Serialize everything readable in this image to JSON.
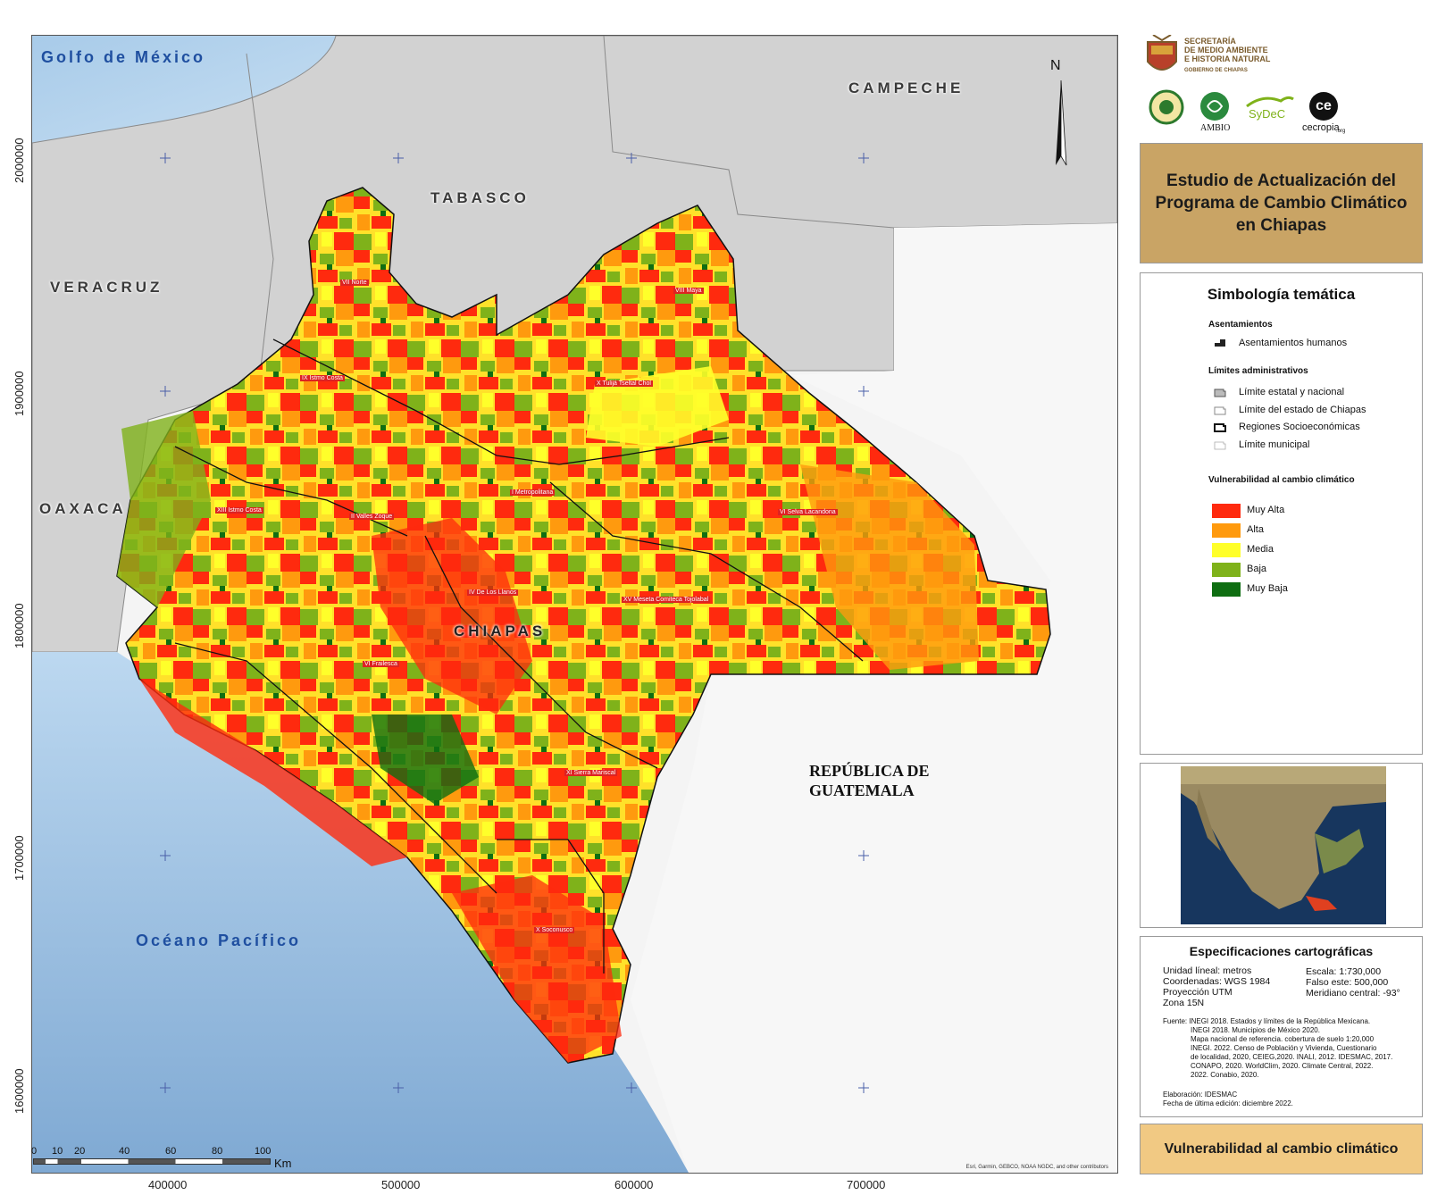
{
  "map": {
    "neighbors": [
      "Golfo de México",
      "CAMPECHE",
      "TABASCO",
      "VERACRUZ",
      "OAXACA",
      "Océano Pacífico"
    ],
    "state_label": "CHIAPAS",
    "guatemala_label": "REPÚBLICA DE\nGUATEMALA",
    "north_arrow": "N",
    "attribution": "Esri, Garmin, GEBCO, NOAA NGDC, and other contributors",
    "regions": [
      "VII Norte",
      "VIII Maya",
      "X Tulijá Tseltal Chol",
      "VI Frailesca",
      "XIII Istmo Costa",
      "I Metropolitana",
      "II Valles Zoque",
      "XV Meseta Comiteca Tojolabal",
      "VI Selva Lacandona",
      "IV De Los Llanos",
      "XI Sierra Mariscal",
      "X Soconusco",
      "IX Istmo Costa"
    ]
  },
  "axes": {
    "x_ticks": [
      "400000",
      "500000",
      "600000",
      "700000"
    ],
    "y_ticks": [
      "2000000",
      "1900000",
      "1800000",
      "1700000",
      "1600000"
    ]
  },
  "scale": {
    "labels": [
      "0",
      "10",
      "20",
      "40",
      "60",
      "80",
      "100"
    ],
    "unit": "Km"
  },
  "logos": {
    "secretaria": "SECRETARÍA",
    "dependencia_1": "DE MEDIO AMBIENTE",
    "dependencia_2": "E HISTORIA NATURAL",
    "gobierno": "GOBIERNO DE CHIAPAS",
    "ambio": "AMBIO",
    "sydec": "SyDeC",
    "cecropia": "cecropia",
    "cecropia_suffix": ".org",
    "ce": "ce"
  },
  "title": "Estudio de Actualización del\nPrograma de Cambio Climático\nen Chiapas",
  "legend": {
    "heading": "Simbología temática",
    "asentamientos_title": "Asentamientos",
    "asentamientos_item": "Asentamientos humanos",
    "limites_title": "Límites administrativos",
    "limites_items": [
      "Límite estatal y nacional",
      "Límite del estado de Chiapas",
      "Regiones Socioeconómicas",
      "Límite municipal"
    ],
    "vulnerabilidad_title": "Vulnerabilidad al cambio climático",
    "classes": [
      {
        "label": "Muy Alta",
        "color": "#ff2a0e"
      },
      {
        "label": "Alta",
        "color": "#ff9a0e"
      },
      {
        "label": "Media",
        "color": "#ffff2a"
      },
      {
        "label": "Baja",
        "color": "#7fb21a"
      },
      {
        "label": "Muy Baja",
        "color": "#0f6e12"
      }
    ]
  },
  "specs": {
    "title": "Especificaciones cartográficas",
    "left": [
      "Unidad líneal: metros",
      "Coordenadas: WGS 1984",
      "Proyección UTM",
      "Zona 15N"
    ],
    "right": [
      "Escala: 1:730,000",
      "Falso este: 500,000",
      "Meridiano central: -93°"
    ],
    "fuente": [
      "Fuente: INEGI 2018. Estados y límites de la República Mexicana.",
      "INEGI 2018. Municipios de México 2020.",
      "Mapa nacional de referencia. cobertura de suelo 1:20,000",
      "INEGI. 2022. Censo de Población y Vivienda, Cuestionario",
      "de localidad, 2020, CEIEG,2020. INALI, 2012.  IDESMAC, 2017.",
      "CONAPO, 2020. WorldClim, 2020. Climate Central, 2022.",
      "2022. Conabio, 2020."
    ],
    "elaboracion": "Elaboración: IDESMAC",
    "fecha": "Fecha de última edición: diciembre 2022."
  },
  "theme": "Vulnerabilidad al cambio climático"
}
